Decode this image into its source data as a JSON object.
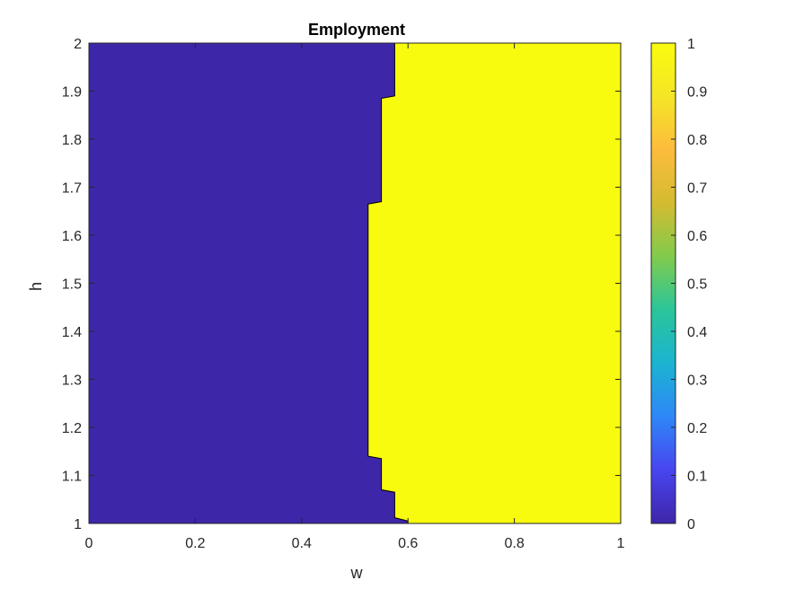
{
  "chart_data": {
    "type": "contourf",
    "title": "Employment",
    "xlabel": "w",
    "ylabel": "h",
    "xlim": [
      0,
      1
    ],
    "ylim": [
      1,
      2
    ],
    "xticks": [
      0,
      0.2,
      0.4,
      0.6,
      0.8,
      1
    ],
    "xtick_labels": [
      "0",
      "0.2",
      "0.4",
      "0.6",
      "0.8",
      "1"
    ],
    "yticks": [
      1,
      1.1,
      1.2,
      1.3,
      1.4,
      1.5,
      1.6,
      1.7,
      1.8,
      1.9,
      2
    ],
    "ytick_labels": [
      "1",
      "1.1",
      "1.2",
      "1.3",
      "1.4",
      "1.5",
      "1.6",
      "1.7",
      "1.8",
      "1.9",
      "2"
    ],
    "regions": [
      {
        "value": 0,
        "color": "#3e26a8",
        "side": "left of boundary"
      },
      {
        "value": 1,
        "color": "#f9fb0e",
        "side": "right of boundary"
      }
    ],
    "boundary": {
      "description": "contour separating employment = 0 (left) from employment = 1 (right)",
      "points": [
        [
          0.6,
          1.0
        ],
        [
          0.6,
          1.005
        ],
        [
          0.575,
          1.012
        ],
        [
          0.575,
          1.065
        ],
        [
          0.55,
          1.07
        ],
        [
          0.55,
          1.135
        ],
        [
          0.525,
          1.14
        ],
        [
          0.525,
          1.665
        ],
        [
          0.55,
          1.67
        ],
        [
          0.55,
          1.885
        ],
        [
          0.575,
          1.89
        ],
        [
          0.575,
          2.0
        ]
      ]
    },
    "colorbar": {
      "colormap": "parula",
      "min": 0,
      "max": 1,
      "ticks": [
        0,
        0.1,
        0.2,
        0.3,
        0.4,
        0.5,
        0.6,
        0.7,
        0.8,
        0.9,
        1
      ],
      "tick_labels": [
        "0",
        "0.1",
        "0.2",
        "0.3",
        "0.4",
        "0.5",
        "0.6",
        "0.7",
        "0.8",
        "0.9",
        "1"
      ],
      "stops": [
        "#3e26a8",
        "#4845f0",
        "#2e87f7",
        "#1bb4d1",
        "#2ac59a",
        "#81cb4d",
        "#d4bb30",
        "#fcbc3c",
        "#f5e626",
        "#f9fb0e"
      ]
    }
  }
}
